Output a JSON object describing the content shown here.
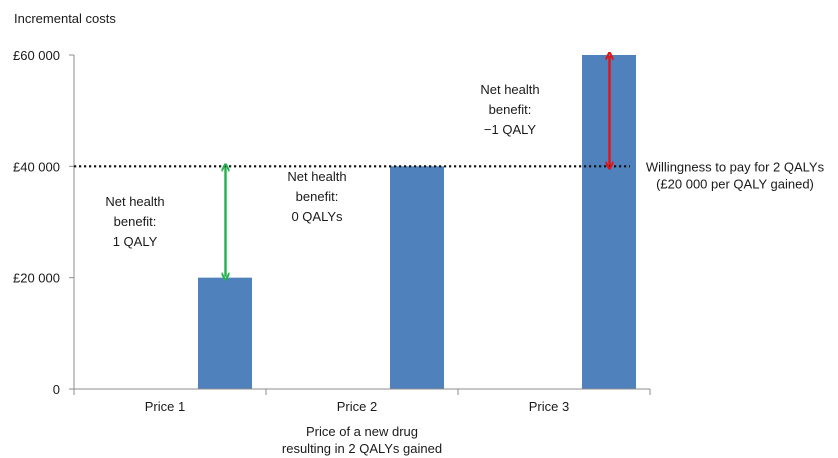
{
  "chart_data": {
    "type": "bar",
    "ylabel": "Incremental costs",
    "xlabel_lines": [
      "Price of a new drug",
      "resulting in 2 QALYs gained"
    ],
    "categories": [
      "Price 1",
      "Price 2",
      "Price 3"
    ],
    "values": [
      20000,
      40000,
      60000
    ],
    "ylim": [
      0,
      60000
    ],
    "yticks": [
      0,
      20000,
      40000,
      60000
    ],
    "ytick_labels": [
      "0",
      "£20 000",
      "£40 000",
      "£60 000"
    ],
    "grid": false,
    "bar_color": "#4f81bd",
    "threshold": {
      "value": 40000,
      "label_lines": [
        "Willingness to pay for 2 QALYs",
        "(£20 000 per QALY gained)"
      ]
    },
    "annotations": [
      {
        "category": "Price 1",
        "lines": [
          "Net health",
          "benefit:",
          "1 QALY"
        ],
        "arrow_from": 20000,
        "arrow_to": 40000,
        "arrow_color": "#22b14c"
      },
      {
        "category": "Price 2",
        "lines": [
          "Net health",
          "benefit:",
          "0 QALYs"
        ]
      },
      {
        "category": "Price 3",
        "lines": [
          "Net health",
          "benefit:",
          "−1 QALY"
        ],
        "arrow_from": 40000,
        "arrow_to": 60000,
        "arrow_color": "#e81010"
      }
    ]
  }
}
